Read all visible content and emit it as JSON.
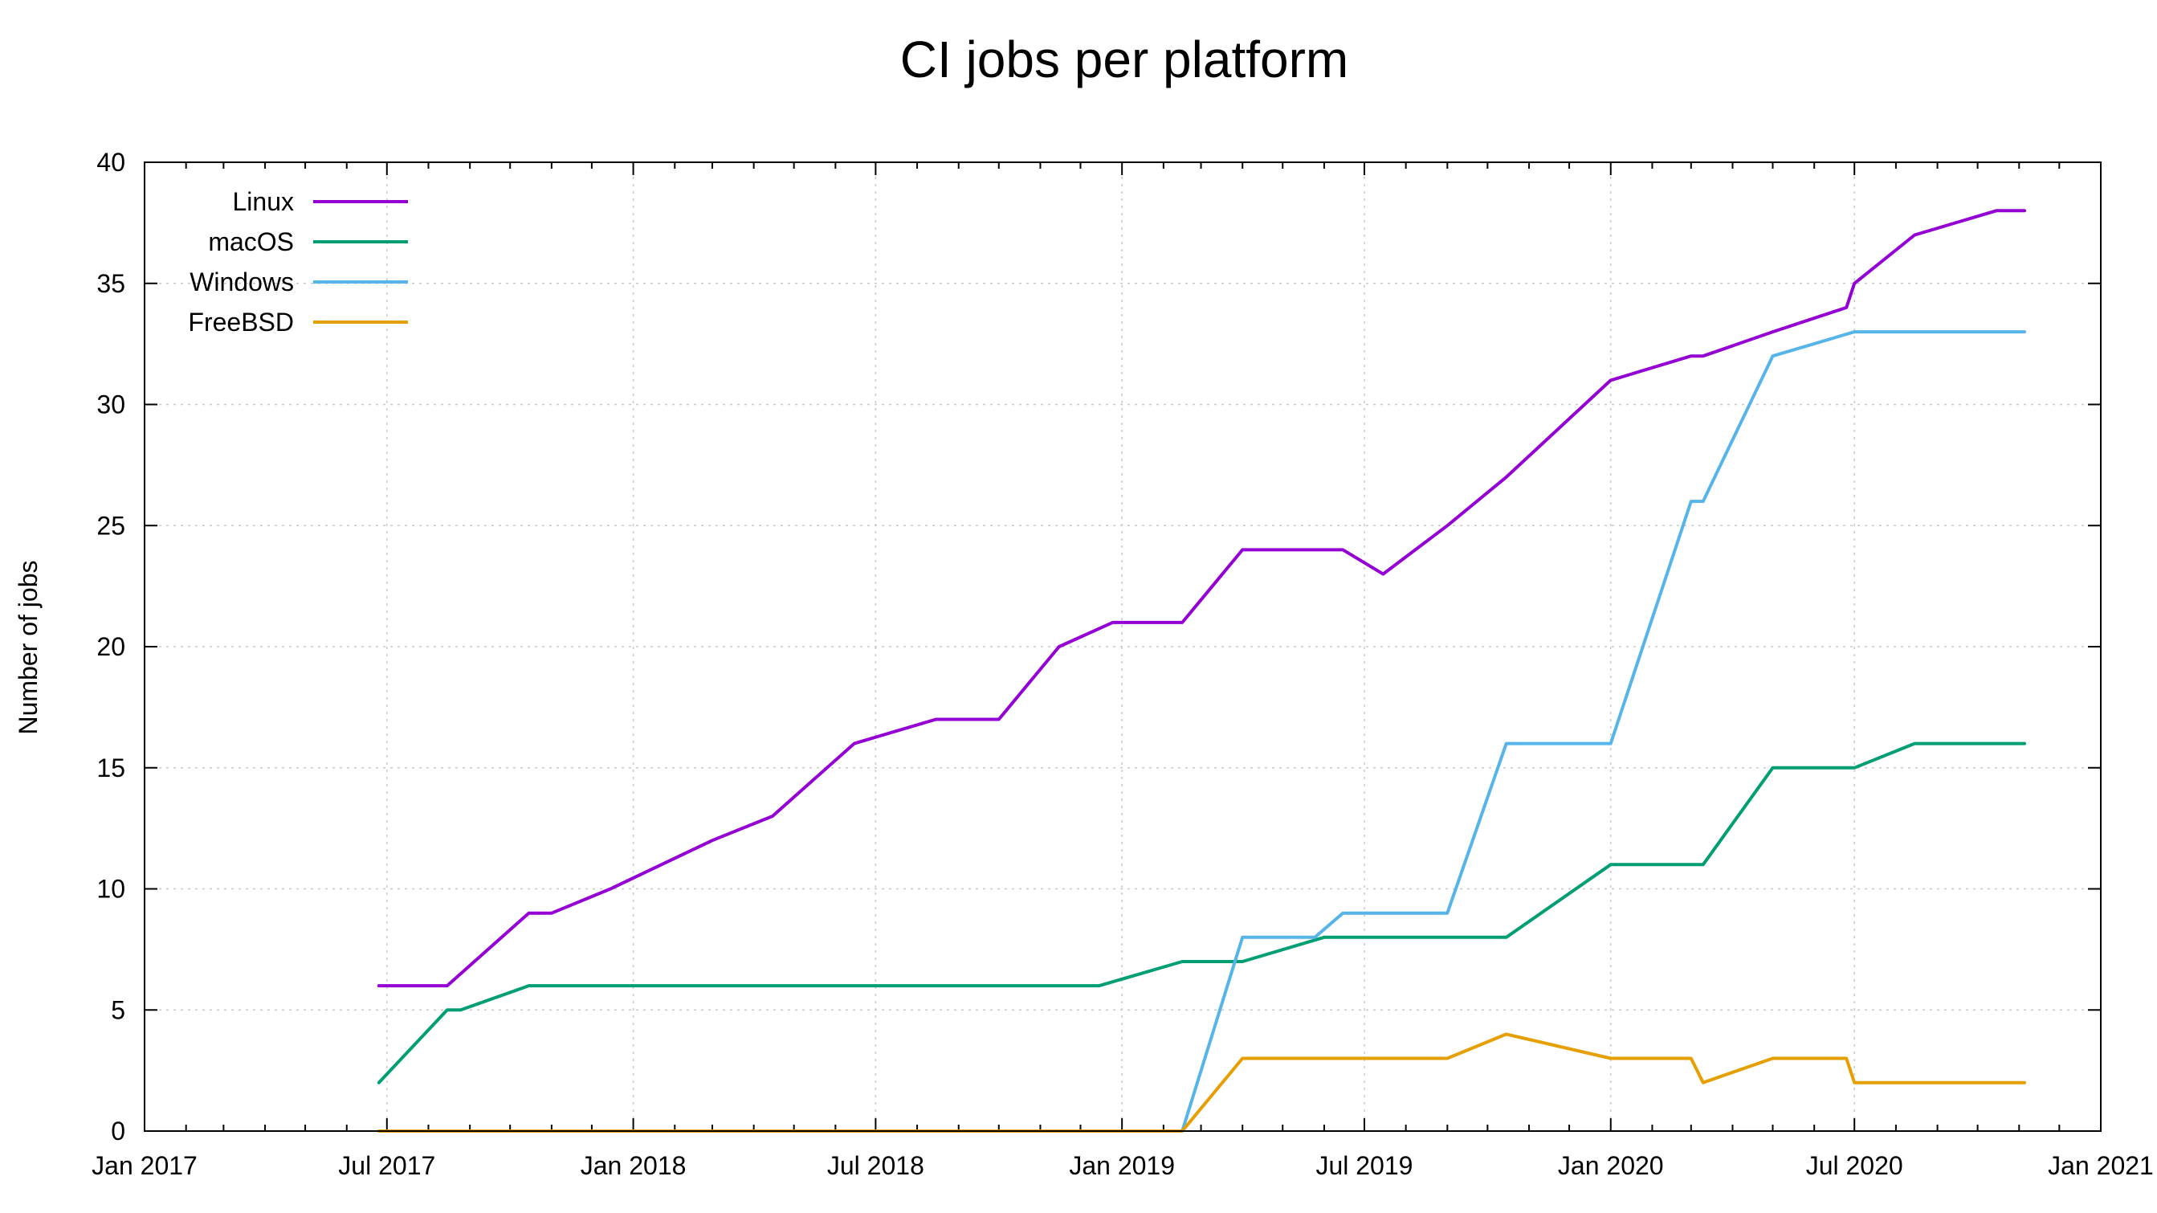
{
  "chart_data": {
    "type": "line",
    "title": "CI jobs per platform",
    "xlabel": "",
    "ylabel": "Number of jobs",
    "xlim": [
      "2017-01-01",
      "2021-01-01"
    ],
    "ylim": [
      0,
      40
    ],
    "grid": true,
    "legend_position": "top-left",
    "x_tick_labels": [
      {
        "date": "2017-01-01",
        "label": "Jan 2017"
      },
      {
        "date": "2017-07-01",
        "label": "Jul 2017"
      },
      {
        "date": "2018-01-01",
        "label": "Jan 2018"
      },
      {
        "date": "2018-07-01",
        "label": "Jul 2018"
      },
      {
        "date": "2019-01-01",
        "label": "Jan 2019"
      },
      {
        "date": "2019-07-01",
        "label": "Jul 2019"
      },
      {
        "date": "2020-01-01",
        "label": "Jan 2020"
      },
      {
        "date": "2020-07-01",
        "label": "Jul 2020"
      },
      {
        "date": "2021-01-01",
        "label": "Jan 2021"
      }
    ],
    "y_ticks": [
      0,
      5,
      10,
      15,
      20,
      25,
      30,
      35,
      40
    ],
    "series": [
      {
        "name": "Linux",
        "color": "#9400d3",
        "points": [
          [
            "2017-06-25",
            6
          ],
          [
            "2017-07-15",
            6
          ],
          [
            "2017-08-15",
            6
          ],
          [
            "2017-10-15",
            9
          ],
          [
            "2017-11-01",
            9
          ],
          [
            "2017-12-15",
            10
          ],
          [
            "2018-03-01",
            12
          ],
          [
            "2018-04-15",
            13
          ],
          [
            "2018-06-15",
            16
          ],
          [
            "2018-08-15",
            17
          ],
          [
            "2018-10-01",
            17
          ],
          [
            "2018-11-15",
            20
          ],
          [
            "2018-12-25",
            21
          ],
          [
            "2019-02-15",
            21
          ],
          [
            "2019-04-01",
            24
          ],
          [
            "2019-06-15",
            24
          ],
          [
            "2019-07-15",
            23
          ],
          [
            "2019-09-01",
            25
          ],
          [
            "2019-10-15",
            27
          ],
          [
            "2020-01-01",
            31
          ],
          [
            "2020-03-01",
            32
          ],
          [
            "2020-03-10",
            32
          ],
          [
            "2020-05-01",
            33
          ],
          [
            "2020-06-25",
            34
          ],
          [
            "2020-07-01",
            35
          ],
          [
            "2020-08-15",
            37
          ],
          [
            "2020-10-15",
            38
          ],
          [
            "2020-11-05",
            38
          ]
        ]
      },
      {
        "name": "macOS",
        "color": "#009e73",
        "points": [
          [
            "2017-06-25",
            2
          ],
          [
            "2017-08-15",
            5
          ],
          [
            "2017-08-25",
            5
          ],
          [
            "2017-10-15",
            6
          ],
          [
            "2018-12-15",
            6
          ],
          [
            "2019-02-15",
            7
          ],
          [
            "2019-04-01",
            7
          ],
          [
            "2019-06-01",
            8
          ],
          [
            "2019-10-15",
            8
          ],
          [
            "2020-01-01",
            11
          ],
          [
            "2020-03-10",
            11
          ],
          [
            "2020-05-01",
            15
          ],
          [
            "2020-07-01",
            15
          ],
          [
            "2020-08-15",
            16
          ],
          [
            "2020-11-05",
            16
          ]
        ]
      },
      {
        "name": "Windows",
        "color": "#56b4e9",
        "points": [
          [
            "2019-02-15",
            0
          ],
          [
            "2019-04-01",
            8
          ],
          [
            "2019-05-25",
            8
          ],
          [
            "2019-06-15",
            9
          ],
          [
            "2019-09-01",
            9
          ],
          [
            "2019-10-15",
            16
          ],
          [
            "2020-01-01",
            16
          ],
          [
            "2020-03-01",
            26
          ],
          [
            "2020-03-10",
            26
          ],
          [
            "2020-05-01",
            32
          ],
          [
            "2020-07-01",
            33
          ],
          [
            "2020-11-05",
            33
          ]
        ]
      },
      {
        "name": "FreeBSD",
        "color": "#e69f00",
        "points": [
          [
            "2017-06-25",
            0
          ],
          [
            "2019-02-15",
            0
          ],
          [
            "2019-04-01",
            3
          ],
          [
            "2019-09-01",
            3
          ],
          [
            "2019-10-15",
            4
          ],
          [
            "2020-01-01",
            3
          ],
          [
            "2020-03-01",
            3
          ],
          [
            "2020-03-10",
            2
          ],
          [
            "2020-05-01",
            3
          ],
          [
            "2020-06-25",
            3
          ],
          [
            "2020-07-01",
            2
          ],
          [
            "2020-11-05",
            2
          ]
        ]
      }
    ]
  }
}
